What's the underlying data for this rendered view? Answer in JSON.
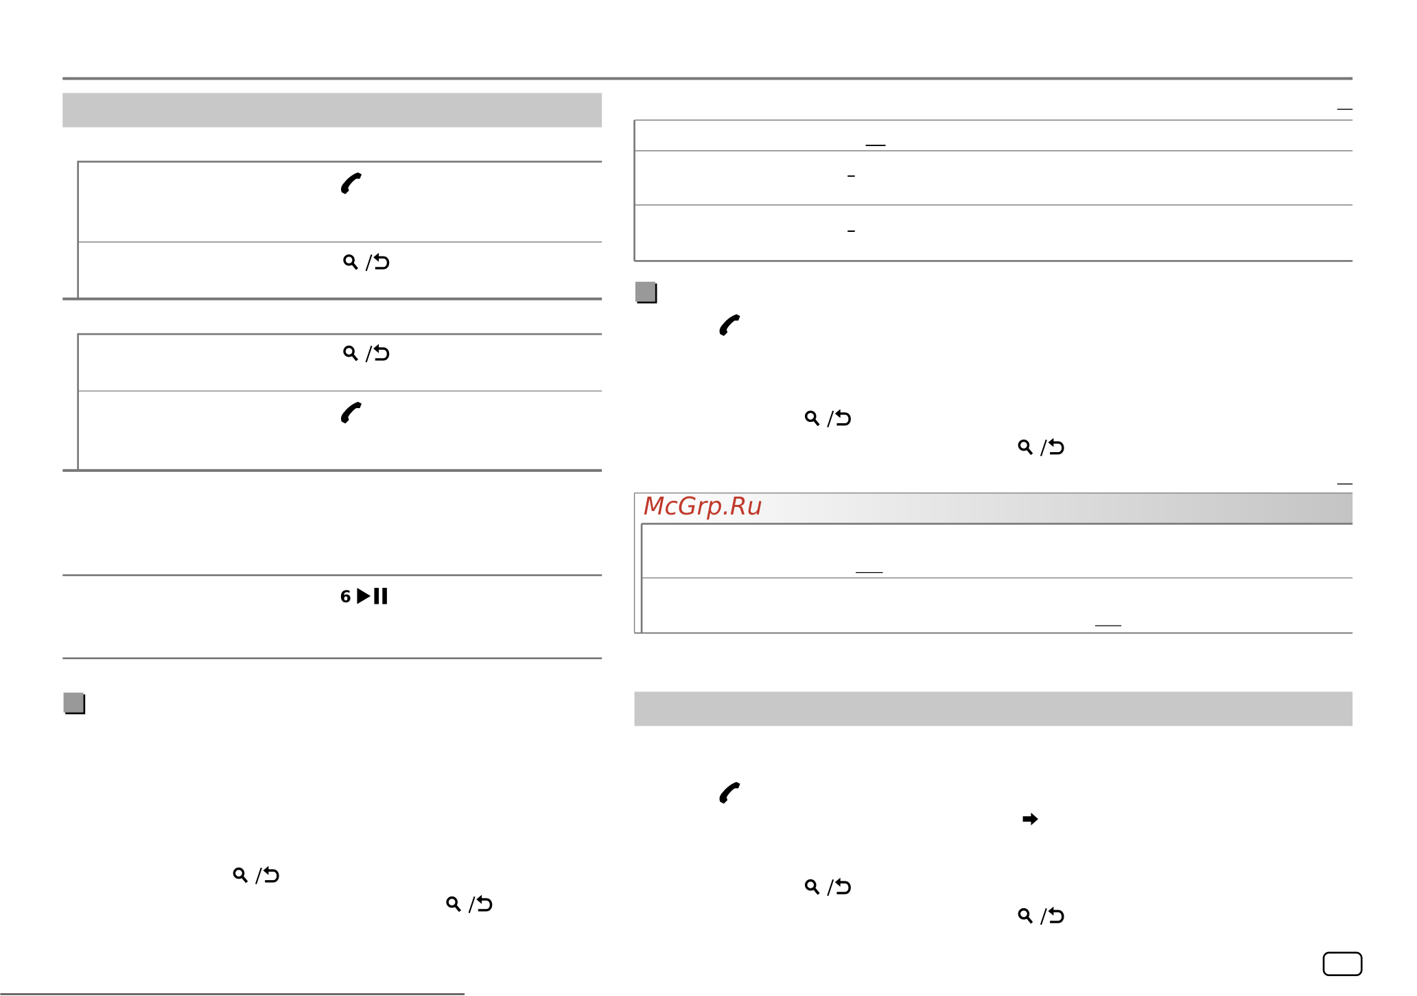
{
  "watermark": "McGrp.Ru",
  "play_key": {
    "number": "6"
  }
}
